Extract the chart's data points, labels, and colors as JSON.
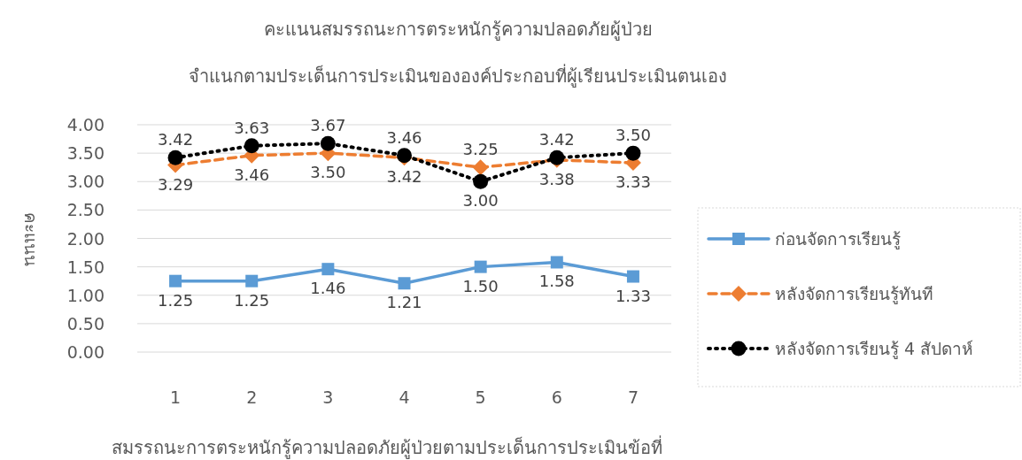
{
  "chart_data": {
    "type": "line",
    "title": "คะแนนสมรรถนะการตระหนักรู้ความปลอดภัยผู้ป่วย",
    "subtitle": "จำแนกตามประเด็นการประเมินขององค์ประกอบที่ผู้เรียนประเมินตนเอง",
    "xlabel": "สมรรถนะการตระหนักรู้ความปลอดภัยผู้ป่วยตามประเด็นการประเมินข้อที่",
    "ylabel": "คะแนน",
    "categories": [
      "1",
      "2",
      "3",
      "4",
      "5",
      "6",
      "7"
    ],
    "ylim": [
      0,
      4
    ],
    "yticks": [
      {
        "value": 0,
        "label": "0.00"
      },
      {
        "value": 0.5,
        "label": "0.50"
      },
      {
        "value": 1,
        "label": "1.00"
      },
      {
        "value": 1.5,
        "label": "1.50"
      },
      {
        "value": 2,
        "label": "2.00"
      },
      {
        "value": 2.5,
        "label": "2.50"
      },
      {
        "value": 3,
        "label": "3.00"
      },
      {
        "value": 3.5,
        "label": "3.50"
      },
      {
        "value": 4,
        "label": "4.00"
      }
    ],
    "grid": "y",
    "legend": "right",
    "series": [
      {
        "name": "ก่อนจัดการเรียนรู้",
        "color": "#5b9bd5",
        "marker": "square",
        "line_style": "solid",
        "values": [
          1.25,
          1.25,
          1.46,
          1.21,
          1.5,
          1.58,
          1.33
        ],
        "value_labels": [
          "1.25",
          "1.25",
          "1.46",
          "1.21",
          "1.50",
          "1.58",
          "1.33"
        ]
      },
      {
        "name": "หลังจัดการเรียนรู้ทันที",
        "color": "#ed7d31",
        "marker": "diamond",
        "line_style": "dashed",
        "values": [
          3.29,
          3.46,
          3.5,
          3.42,
          3.25,
          3.38,
          3.33
        ],
        "value_labels": [
          "3.29",
          "3.46",
          "3.50",
          "3.42",
          "3.25",
          "3.38",
          "3.33"
        ]
      },
      {
        "name": "หลังจัดการเรียนรู้ 4 สัปดาห์",
        "color": "#000000",
        "marker": "circle",
        "line_style": "dotted",
        "values": [
          3.42,
          3.63,
          3.67,
          3.46,
          3.0,
          3.42,
          3.5
        ],
        "value_labels": [
          "3.42",
          "3.63",
          "3.67",
          "3.46",
          "3.00",
          "3.42",
          "3.50"
        ]
      }
    ]
  }
}
